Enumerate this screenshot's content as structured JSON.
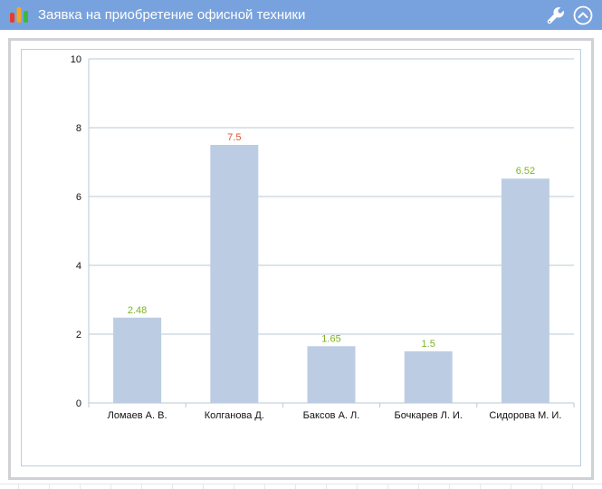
{
  "window": {
    "title": "Заявка на приобретение офисной техники",
    "app_icon": "bar-chart-icon",
    "settings_icon": "wrench-icon",
    "collapse_icon": "chevron-up-circle-icon",
    "colors": {
      "header": "#78a2dd",
      "panel_border": "#cfd1d5",
      "frame_border": "#b9cfe0"
    }
  },
  "chart_data": {
    "type": "bar",
    "title": "",
    "xlabel": "",
    "ylabel": "",
    "categories": [
      "Ломаев А. В.",
      "Колганова Д.",
      "Баксов А. Л.",
      "Бочкарев Л. И.",
      "Сидорова М. И."
    ],
    "values": [
      2.48,
      7.5,
      1.65,
      1.5,
      6.52
    ],
    "data_labels": [
      "2.48",
      "7.5",
      "1.65",
      "1.5",
      "6.52"
    ],
    "label_colors": [
      "#7cb322",
      "#e0502a",
      "#7cb322",
      "#7cb322",
      "#7cb322"
    ],
    "bar_color": "#bccde3",
    "ylim": [
      0,
      10
    ],
    "yticks": [
      "0",
      "2",
      "4",
      "6",
      "8",
      "10"
    ],
    "ytick_values": [
      0,
      2,
      4,
      6,
      8,
      10
    ],
    "grid": true,
    "legend": "none"
  }
}
